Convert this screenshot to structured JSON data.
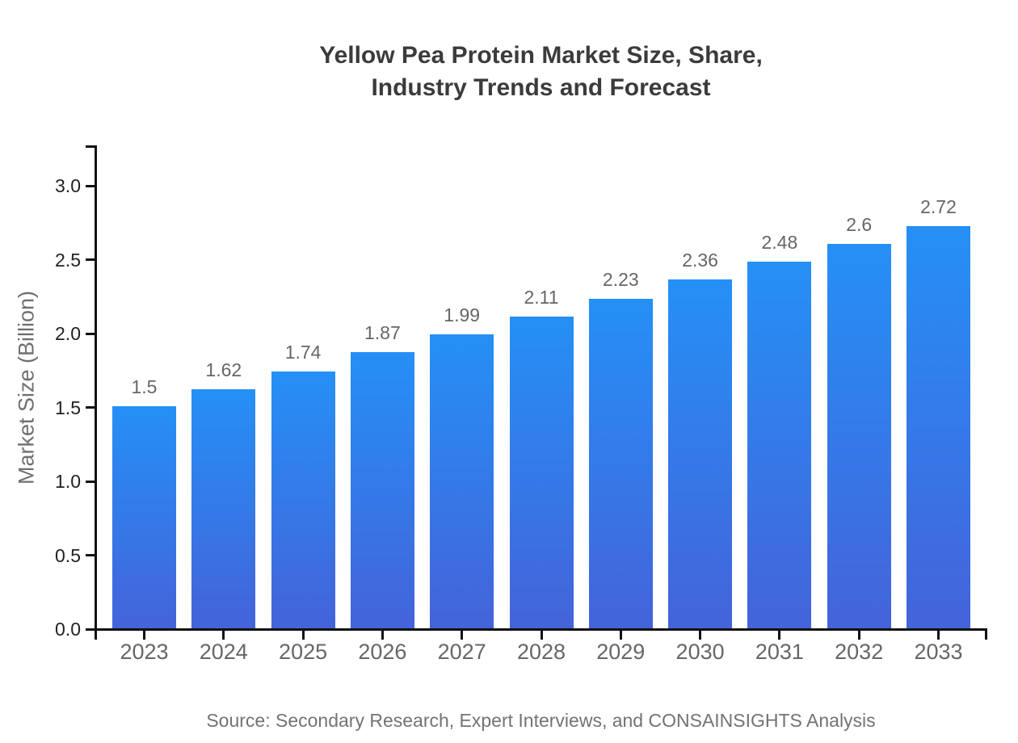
{
  "chart_data": {
    "type": "bar",
    "title_lines": [
      "Yellow Pea Protein Market Size, Share,",
      "Industry Trends and Forecast"
    ],
    "categories": [
      "2023",
      "2024",
      "2025",
      "2026",
      "2027",
      "2028",
      "2029",
      "2030",
      "2031",
      "2032",
      "2033"
    ],
    "values": [
      1.5,
      1.62,
      1.74,
      1.87,
      1.99,
      2.11,
      2.23,
      2.36,
      2.48,
      2.6,
      2.72
    ],
    "value_labels": [
      "1.5",
      "1.62",
      "1.74",
      "1.87",
      "1.99",
      "2.11",
      "2.23",
      "2.36",
      "2.48",
      "2.6",
      "2.72"
    ],
    "xlabel": "",
    "ylabel": "Market Size (Billion)",
    "yticks": [
      "0.0",
      "0.5",
      "1.0",
      "1.5",
      "2.0",
      "2.5",
      "3.0"
    ],
    "ylim": [
      0.0,
      3.27
    ],
    "grid": false,
    "legend": "none",
    "source": "Source: Secondary Research, Expert Interviews, and CONSAINSIGHTS Analysis",
    "colors": {
      "bar_gradient_top": "#2590f6",
      "bar_gradient_bottom": "#4463da",
      "axis": "#111111",
      "title": "#3b3b3b",
      "y_tick_label": "#222222",
      "x_tick_label": "#666666",
      "value_label": "#666666",
      "axis_label": "#6f6f6f",
      "source_text": "#737373",
      "background": "#ffffff"
    }
  }
}
